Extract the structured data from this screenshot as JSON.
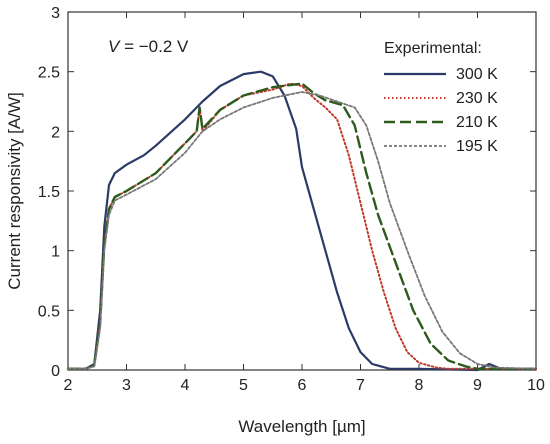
{
  "chart_data": {
    "type": "line",
    "xlabel": "Wavelength [µm]",
    "ylabel": "Current responsivity [A/W]",
    "xlim": [
      2,
      10
    ],
    "ylim": [
      0,
      3
    ],
    "xticks": [
      2,
      3,
      4,
      5,
      6,
      7,
      8,
      9,
      10
    ],
    "yticks": [
      0,
      0.5,
      1,
      1.5,
      2,
      2.5,
      3
    ],
    "xtick_labels": [
      "2",
      "3",
      "4",
      "5",
      "6",
      "7",
      "8",
      "9",
      "10"
    ],
    "ytick_labels": [
      "0",
      "0.5",
      "1",
      "1.5",
      "2",
      "2.5",
      "3"
    ],
    "annotation": {
      "italic": "V",
      "rest": " = −0.2 V"
    },
    "legend_title": "Experimental:",
    "legend_position": "top-right",
    "grid": false,
    "series": [
      {
        "name": "300 K",
        "color": "#2b3a67",
        "dash": "solid",
        "points": [
          [
            2,
            0.01
          ],
          [
            2.3,
            0.01
          ],
          [
            2.45,
            0.05
          ],
          [
            2.55,
            0.5
          ],
          [
            2.62,
            1.2
          ],
          [
            2.7,
            1.55
          ],
          [
            2.8,
            1.65
          ],
          [
            3.0,
            1.72
          ],
          [
            3.3,
            1.8
          ],
          [
            3.5,
            1.88
          ],
          [
            4.0,
            2.1
          ],
          [
            4.3,
            2.25
          ],
          [
            4.6,
            2.38
          ],
          [
            5.0,
            2.48
          ],
          [
            5.3,
            2.5
          ],
          [
            5.5,
            2.46
          ],
          [
            5.7,
            2.3
          ],
          [
            5.9,
            2.02
          ],
          [
            6.0,
            1.7
          ],
          [
            6.2,
            1.35
          ],
          [
            6.4,
            1.0
          ],
          [
            6.6,
            0.65
          ],
          [
            6.8,
            0.35
          ],
          [
            7.0,
            0.15
          ],
          [
            7.2,
            0.05
          ],
          [
            7.5,
            0.01
          ],
          [
            8.0,
            0.01
          ],
          [
            9.0,
            0.0
          ],
          [
            9.2,
            0.05
          ],
          [
            9.4,
            0.01
          ],
          [
            10,
            0.01
          ]
        ]
      },
      {
        "name": "230 K",
        "color": "#c0392b",
        "dash": "dotted",
        "points": [
          [
            2,
            0.01
          ],
          [
            2.3,
            0.01
          ],
          [
            2.45,
            0.04
          ],
          [
            2.55,
            0.4
          ],
          [
            2.62,
            1.05
          ],
          [
            2.7,
            1.35
          ],
          [
            2.8,
            1.45
          ],
          [
            3.0,
            1.5
          ],
          [
            3.5,
            1.65
          ],
          [
            4.0,
            1.9
          ],
          [
            4.2,
            2.0
          ],
          [
            4.25,
            2.2
          ],
          [
            4.3,
            2.0
          ],
          [
            4.6,
            2.18
          ],
          [
            5.0,
            2.3
          ],
          [
            5.5,
            2.35
          ],
          [
            5.8,
            2.4
          ],
          [
            6.0,
            2.38
          ],
          [
            6.2,
            2.28
          ],
          [
            6.4,
            2.2
          ],
          [
            6.6,
            2.1
          ],
          [
            6.8,
            1.8
          ],
          [
            7.0,
            1.4
          ],
          [
            7.2,
            1.0
          ],
          [
            7.4,
            0.65
          ],
          [
            7.6,
            0.35
          ],
          [
            7.8,
            0.15
          ],
          [
            8.0,
            0.06
          ],
          [
            8.3,
            0.02
          ],
          [
            8.5,
            0.01
          ],
          [
            10,
            0.01
          ]
        ]
      },
      {
        "name": "210 K",
        "color": "#2e5a1c",
        "dash": "dashed",
        "points": [
          [
            2,
            0.01
          ],
          [
            2.3,
            0.01
          ],
          [
            2.45,
            0.04
          ],
          [
            2.55,
            0.4
          ],
          [
            2.62,
            1.05
          ],
          [
            2.7,
            1.35
          ],
          [
            2.8,
            1.45
          ],
          [
            3.0,
            1.5
          ],
          [
            3.5,
            1.65
          ],
          [
            4.0,
            1.9
          ],
          [
            4.2,
            2.0
          ],
          [
            4.25,
            2.2
          ],
          [
            4.3,
            2.02
          ],
          [
            4.6,
            2.18
          ],
          [
            5.0,
            2.3
          ],
          [
            5.5,
            2.37
          ],
          [
            6.0,
            2.4
          ],
          [
            6.2,
            2.32
          ],
          [
            6.4,
            2.26
          ],
          [
            6.7,
            2.22
          ],
          [
            6.9,
            2.05
          ],
          [
            7.1,
            1.65
          ],
          [
            7.3,
            1.3
          ],
          [
            7.6,
            0.9
          ],
          [
            7.9,
            0.5
          ],
          [
            8.2,
            0.22
          ],
          [
            8.5,
            0.08
          ],
          [
            8.8,
            0.03
          ],
          [
            9.0,
            0.01
          ],
          [
            10,
            0.01
          ]
        ]
      },
      {
        "name": "195 K",
        "color": "#777777",
        "dash": "fine",
        "points": [
          [
            2,
            0.01
          ],
          [
            2.3,
            0.01
          ],
          [
            2.45,
            0.03
          ],
          [
            2.55,
            0.35
          ],
          [
            2.62,
            1.0
          ],
          [
            2.7,
            1.3
          ],
          [
            2.8,
            1.42
          ],
          [
            3.0,
            1.47
          ],
          [
            3.5,
            1.6
          ],
          [
            4.0,
            1.82
          ],
          [
            4.3,
            2.0
          ],
          [
            4.6,
            2.1
          ],
          [
            5.0,
            2.2
          ],
          [
            5.5,
            2.28
          ],
          [
            6.0,
            2.33
          ],
          [
            6.3,
            2.3
          ],
          [
            6.6,
            2.25
          ],
          [
            6.9,
            2.2
          ],
          [
            7.1,
            2.05
          ],
          [
            7.3,
            1.75
          ],
          [
            7.5,
            1.4
          ],
          [
            7.8,
            1.0
          ],
          [
            8.1,
            0.62
          ],
          [
            8.4,
            0.32
          ],
          [
            8.7,
            0.14
          ],
          [
            9.0,
            0.05
          ],
          [
            9.3,
            0.02
          ],
          [
            10,
            0.01
          ]
        ]
      }
    ]
  }
}
